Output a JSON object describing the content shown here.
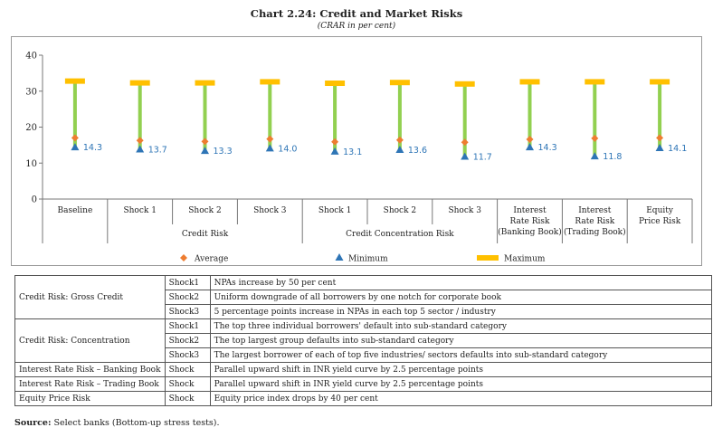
{
  "title": "Chart 2.24: Credit and Market Risks",
  "subtitle": "(CRAR in per cent)",
  "chart_data": {
    "type": "bar",
    "ylim": [
      0,
      40
    ],
    "yticks": [
      "0",
      "10",
      "20",
      "30",
      "40"
    ],
    "categories": [
      [
        "Baseline"
      ],
      [
        "Shock 1"
      ],
      [
        "Shock 2"
      ],
      [
        "Shock 3"
      ],
      [
        "Shock 1"
      ],
      [
        "Shock 2"
      ],
      [
        "Shock 3"
      ],
      [
        "Interest",
        "Rate Risk",
        "(Banking Book)"
      ],
      [
        "Interest",
        "Rate Risk",
        "(Trading Book)"
      ],
      [
        "Equity",
        "Price Risk"
      ]
    ],
    "groups": [
      {
        "label": "Credit Risk",
        "start": 1,
        "end": 3
      },
      {
        "label": "Credit Concentration Risk",
        "start": 4,
        "end": 6
      }
    ],
    "series": [
      {
        "name": "Average",
        "color": "#ee7d31",
        "values": [
          17.0,
          16.3,
          16.0,
          16.7,
          15.9,
          16.4,
          15.8,
          16.6,
          16.9,
          17.0
        ]
      },
      {
        "name": "Minimum",
        "color": "#2e75b6",
        "values": [
          14.3,
          13.7,
          13.3,
          14.0,
          13.1,
          13.6,
          11.7,
          14.3,
          11.8,
          14.1
        ]
      },
      {
        "name": "Maximum",
        "color": "#ffc000",
        "values": [
          32.8,
          32.3,
          32.3,
          32.6,
          32.2,
          32.4,
          32.0,
          32.6,
          32.6,
          32.6
        ]
      }
    ],
    "min_labels": [
      "14.3",
      "13.7",
      "13.3",
      "14.0",
      "13.1",
      "13.6",
      "11.7",
      "14.3",
      "11.8",
      "14.1"
    ],
    "range_color": "#92d050",
    "legend_position": "bottom"
  },
  "notes_table": [
    {
      "risk": "Credit Risk: Gross Credit",
      "shock": "Shock1",
      "description": "NPAs increase by 50 per cent"
    },
    {
      "risk": "",
      "shock": "Shock2",
      "description": "Uniform downgrade of all borrowers by one notch for corporate book"
    },
    {
      "risk": "",
      "shock": "Shock3",
      "description": "5 percentage points increase in NPAs in each top 5 sector / industry"
    },
    {
      "risk": "Credit Risk: Concentration",
      "shock": "Shock1",
      "description": "The top three individual borrowers' default into sub-standard category"
    },
    {
      "risk": "",
      "shock": "Shock2",
      "description": "The top largest group defaults into sub-standard category"
    },
    {
      "risk": "",
      "shock": "Shock3",
      "description": "The largest borrower of each of top five industries/ sectors defaults into sub-standard category"
    },
    {
      "risk": "Interest Rate Risk – Banking Book",
      "shock": "Shock",
      "description": "Parallel upward shift in INR yield curve by 2.5 percentage points"
    },
    {
      "risk": "Interest Rate Risk – Trading Book",
      "shock": "Shock",
      "description": "Parallel upward shift in INR yield curve by 2.5 percentage points"
    },
    {
      "risk": "Equity Price Risk",
      "shock": "Shock",
      "description": "Equity price index drops by 40 per cent"
    }
  ],
  "source": {
    "label": "Source:",
    "text": " Select banks (Bottom-up stress tests)."
  }
}
